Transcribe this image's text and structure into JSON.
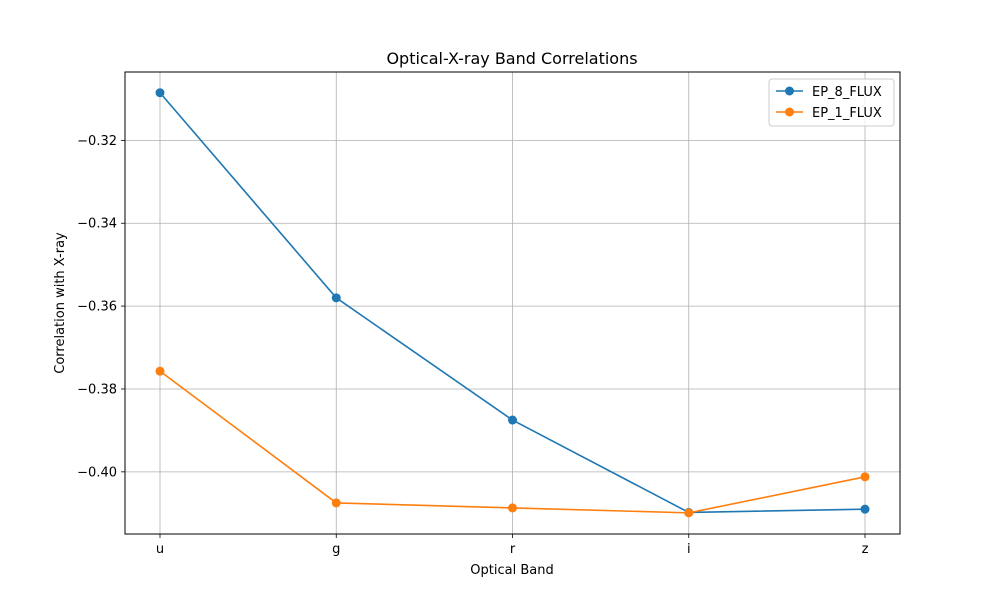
{
  "chart_data": {
    "type": "line",
    "title": "Optical-X-ray Band Correlations",
    "xlabel": "Optical Band",
    "ylabel": "Correlation with X-ray",
    "categories": [
      "u",
      "g",
      "r",
      "i",
      "z"
    ],
    "ylim": [
      -0.415,
      -0.3035
    ],
    "yticks": [
      -0.32,
      -0.34,
      -0.36,
      -0.38,
      -0.4
    ],
    "ytick_labels": [
      "−0.32",
      "−0.34",
      "−0.36",
      "−0.38",
      "−0.40"
    ],
    "grid": true,
    "legend_position": "top-right",
    "series": [
      {
        "name": "EP_8_FLUX",
        "color": "#1f77b4",
        "values": [
          -0.3085,
          -0.358,
          -0.3875,
          -0.4098,
          -0.409
        ]
      },
      {
        "name": "EP_1_FLUX",
        "color": "#ff7f0e",
        "values": [
          -0.3757,
          -0.4075,
          -0.4087,
          -0.4099,
          -0.4012
        ]
      }
    ]
  }
}
